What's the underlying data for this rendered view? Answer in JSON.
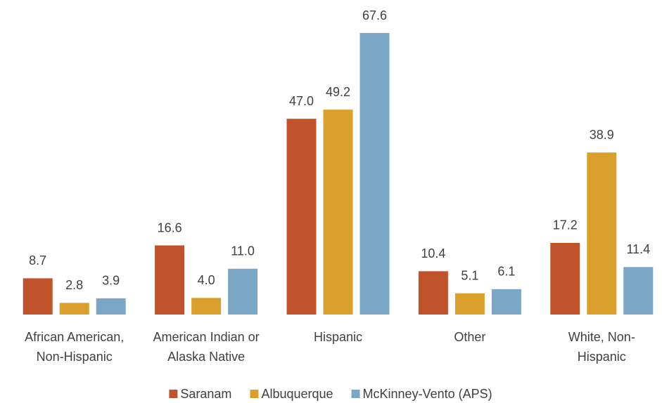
{
  "chart_data": {
    "type": "bar",
    "categories": [
      "African American,\nNon-Hispanic",
      "American Indian or\nAlaska Native",
      "Hispanic",
      "Other",
      "White, Non-\nHispanic"
    ],
    "series": [
      {
        "name": "Saranam",
        "color": "#c0532b",
        "values": [
          8.7,
          16.6,
          47.0,
          10.4,
          17.2
        ],
        "value_labels": [
          "8.7",
          "16.6",
          "47.0",
          "10.4",
          "17.2"
        ]
      },
      {
        "name": "Albuquerque",
        "color": "#daa02b",
        "values": [
          2.8,
          4.0,
          49.2,
          5.1,
          38.9
        ],
        "value_labels": [
          "2.8",
          "4.0",
          "49.2",
          "5.1",
          "38.9"
        ]
      },
      {
        "name": "McKinney-Vento (APS)",
        "color": "#7ba7c7",
        "values": [
          3.9,
          11.0,
          67.6,
          6.1,
          11.4
        ],
        "value_labels": [
          "3.9",
          "11.0",
          "67.6",
          "6.1",
          "11.4"
        ]
      }
    ],
    "legend": "bottom"
  }
}
